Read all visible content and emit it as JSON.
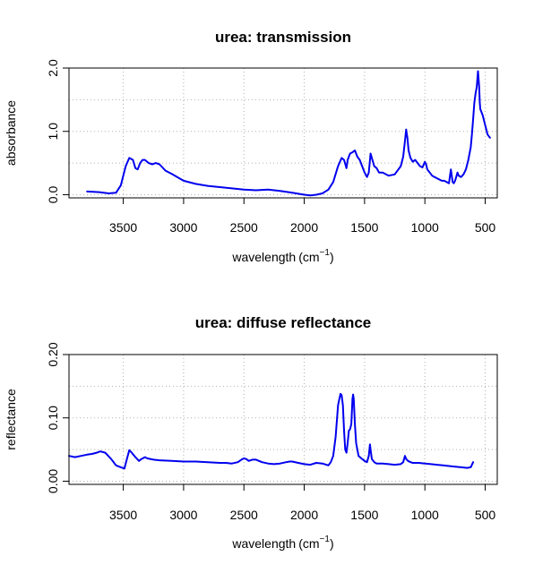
{
  "chart_data": [
    {
      "type": "line",
      "title": "urea: transmission",
      "xlabel": "wavelength",
      "xunit": "(cm",
      "xunit_sup": "−1",
      "xunit_close": ")",
      "ylabel": "absorbance",
      "xlim": [
        3950,
        400
      ],
      "ylim": [
        -0.05,
        2.0
      ],
      "xticks": [
        3500,
        3000,
        2500,
        2000,
        1500,
        1000,
        500
      ],
      "yticks": [
        0.0,
        1.0,
        2.0
      ],
      "ytick_labels": [
        "0.0",
        "1.0",
        "2.0"
      ],
      "grid": true,
      "color": "#0000ee",
      "series": [
        {
          "x": [
            3800,
            3700,
            3620,
            3560,
            3520,
            3480,
            3450,
            3420,
            3400,
            3380,
            3360,
            3340,
            3320,
            3290,
            3260,
            3230,
            3200,
            3150,
            3100,
            3000,
            2900,
            2800,
            2700,
            2600,
            2500,
            2400,
            2300,
            2200,
            2100,
            2000,
            1950,
            1900,
            1850,
            1800,
            1760,
            1720,
            1690,
            1670,
            1650,
            1640,
            1620,
            1600,
            1580,
            1560,
            1540,
            1520,
            1500,
            1480,
            1465,
            1450,
            1440,
            1420,
            1400,
            1380,
            1350,
            1300,
            1250,
            1200,
            1180,
            1165,
            1155,
            1145,
            1135,
            1120,
            1100,
            1080,
            1060,
            1040,
            1020,
            1000,
            990,
            980,
            960,
            940,
            920,
            900,
            880,
            860,
            840,
            820,
            800,
            785,
            770,
            760,
            750,
            740,
            730,
            720,
            700,
            680,
            660,
            640,
            620,
            610,
            600,
            590,
            580,
            570,
            560,
            550,
            545,
            540,
            530,
            520,
            500,
            480,
            460
          ],
          "y": [
            0.05,
            0.04,
            0.02,
            0.03,
            0.15,
            0.45,
            0.58,
            0.55,
            0.42,
            0.4,
            0.5,
            0.55,
            0.55,
            0.5,
            0.48,
            0.5,
            0.48,
            0.38,
            0.33,
            0.22,
            0.17,
            0.14,
            0.12,
            0.1,
            0.08,
            0.07,
            0.08,
            0.06,
            0.03,
            0.0,
            -0.01,
            0.0,
            0.02,
            0.08,
            0.2,
            0.45,
            0.58,
            0.55,
            0.42,
            0.55,
            0.65,
            0.67,
            0.7,
            0.6,
            0.55,
            0.45,
            0.35,
            0.28,
            0.35,
            0.65,
            0.58,
            0.45,
            0.42,
            0.35,
            0.35,
            0.3,
            0.32,
            0.45,
            0.6,
            0.85,
            1.03,
            0.9,
            0.7,
            0.58,
            0.52,
            0.55,
            0.5,
            0.45,
            0.43,
            0.52,
            0.48,
            0.4,
            0.35,
            0.3,
            0.28,
            0.26,
            0.24,
            0.22,
            0.22,
            0.2,
            0.18,
            0.4,
            0.2,
            0.18,
            0.22,
            0.28,
            0.35,
            0.3,
            0.28,
            0.32,
            0.4,
            0.55,
            0.75,
            0.95,
            1.2,
            1.45,
            1.6,
            1.7,
            1.95,
            1.7,
            1.45,
            1.35,
            1.3,
            1.25,
            1.1,
            0.95,
            0.9
          ]
        }
      ]
    },
    {
      "type": "line",
      "title": "urea: diffuse reflectance",
      "xlabel": "wavelength",
      "xunit": "(cm",
      "xunit_sup": "−1",
      "xunit_close": ")",
      "ylabel": "reflectance",
      "xlim": [
        3950,
        400
      ],
      "ylim": [
        -0.005,
        0.2
      ],
      "xticks": [
        3500,
        3000,
        2500,
        2000,
        1500,
        1000,
        500
      ],
      "yticks": [
        0.0,
        0.1,
        0.2
      ],
      "ytick_labels": [
        "0.00",
        "0.10",
        "0.20"
      ],
      "grid": true,
      "color": "#0000ee",
      "series": [
        {
          "x": [
            3950,
            3900,
            3850,
            3800,
            3760,
            3720,
            3690,
            3650,
            3600,
            3560,
            3520,
            3490,
            3470,
            3450,
            3430,
            3400,
            3370,
            3350,
            3320,
            3300,
            3250,
            3200,
            3100,
            3000,
            2900,
            2800,
            2700,
            2650,
            2600,
            2550,
            2520,
            2500,
            2480,
            2460,
            2430,
            2400,
            2350,
            2300,
            2250,
            2200,
            2150,
            2120,
            2100,
            2050,
            2000,
            1950,
            1900,
            1850,
            1800,
            1780,
            1760,
            1740,
            1720,
            1700,
            1690,
            1680,
            1670,
            1660,
            1650,
            1640,
            1630,
            1620,
            1610,
            1600,
            1595,
            1590,
            1580,
            1570,
            1550,
            1520,
            1500,
            1480,
            1465,
            1455,
            1450,
            1440,
            1420,
            1400,
            1350,
            1300,
            1250,
            1200,
            1180,
            1165,
            1155,
            1140,
            1120,
            1100,
            1050,
            1000,
            950,
            900,
            850,
            800,
            750,
            700,
            650,
            620,
            600
          ],
          "y": [
            0.04,
            0.038,
            0.04,
            0.042,
            0.043,
            0.045,
            0.047,
            0.045,
            0.035,
            0.025,
            0.022,
            0.02,
            0.035,
            0.049,
            0.045,
            0.038,
            0.032,
            0.035,
            0.038,
            0.036,
            0.034,
            0.033,
            0.032,
            0.031,
            0.031,
            0.03,
            0.029,
            0.029,
            0.028,
            0.03,
            0.034,
            0.036,
            0.035,
            0.032,
            0.034,
            0.034,
            0.03,
            0.028,
            0.027,
            0.028,
            0.03,
            0.031,
            0.031,
            0.029,
            0.027,
            0.026,
            0.029,
            0.028,
            0.025,
            0.03,
            0.04,
            0.07,
            0.12,
            0.138,
            0.136,
            0.12,
            0.08,
            0.05,
            0.045,
            0.06,
            0.08,
            0.082,
            0.09,
            0.13,
            0.137,
            0.13,
            0.09,
            0.06,
            0.04,
            0.035,
            0.032,
            0.03,
            0.04,
            0.058,
            0.05,
            0.035,
            0.03,
            0.028,
            0.028,
            0.027,
            0.026,
            0.027,
            0.03,
            0.04,
            0.035,
            0.032,
            0.03,
            0.029,
            0.029,
            0.028,
            0.027,
            0.026,
            0.025,
            0.024,
            0.023,
            0.022,
            0.021,
            0.022,
            0.03
          ]
        }
      ]
    }
  ]
}
